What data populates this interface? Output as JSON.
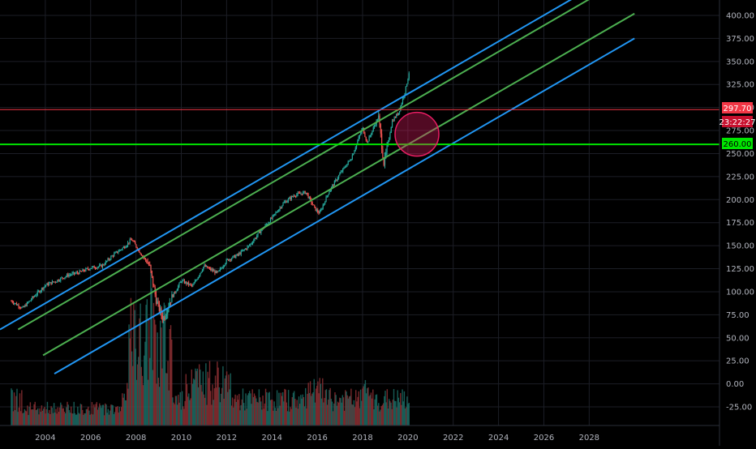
{
  "chart_data": {
    "type": "candlestick",
    "price_axis": {
      "labels": [
        "400.00",
        "375.00",
        "350.00",
        "325.00",
        "300.00",
        "275.00",
        "250.00",
        "225.00",
        "200.00",
        "175.00",
        "150.00",
        "125.00",
        "100.00",
        "75.00",
        "50.00",
        "25.00",
        "0.00",
        "-25.00"
      ],
      "values": [
        400,
        375,
        350,
        325,
        300,
        275,
        250,
        225,
        200,
        175,
        150,
        125,
        100,
        75,
        50,
        25,
        0,
        -25
      ]
    },
    "time_axis": {
      "labels": [
        "2004",
        "2006",
        "2008",
        "2010",
        "2012",
        "2014",
        "2016",
        "2018",
        "2020",
        "2022",
        "2024",
        "2026",
        "2028"
      ],
      "years": [
        2004,
        2006,
        2008,
        2010,
        2012,
        2014,
        2016,
        2018,
        2020,
        2022,
        2024,
        2026,
        2028
      ]
    },
    "price_trend": [
      [
        2002.5,
        90
      ],
      [
        2003.0,
        82
      ],
      [
        2003.5,
        95
      ],
      [
        2004.0,
        107
      ],
      [
        2004.5,
        112
      ],
      [
        2005.0,
        118
      ],
      [
        2005.5,
        121
      ],
      [
        2006.0,
        126
      ],
      [
        2006.5,
        128
      ],
      [
        2007.0,
        140
      ],
      [
        2007.5,
        149
      ],
      [
        2007.8,
        157
      ],
      [
        2008.2,
        142
      ],
      [
        2008.6,
        128
      ],
      [
        2008.9,
        90
      ],
      [
        2009.2,
        70
      ],
      [
        2009.5,
        90
      ],
      [
        2010.0,
        112
      ],
      [
        2010.5,
        106
      ],
      [
        2011.0,
        128
      ],
      [
        2011.6,
        120
      ],
      [
        2012.0,
        134
      ],
      [
        2012.5,
        140
      ],
      [
        2013.0,
        150
      ],
      [
        2013.5,
        166
      ],
      [
        2014.0,
        180
      ],
      [
        2014.5,
        196
      ],
      [
        2015.0,
        205
      ],
      [
        2015.5,
        208
      ],
      [
        2015.9,
        190
      ],
      [
        2016.1,
        185
      ],
      [
        2016.5,
        208
      ],
      [
        2017.0,
        228
      ],
      [
        2017.5,
        245
      ],
      [
        2018.0,
        278
      ],
      [
        2018.2,
        262
      ],
      [
        2018.7,
        290
      ],
      [
        2018.95,
        238
      ],
      [
        2019.3,
        285
      ],
      [
        2019.6,
        295
      ],
      [
        2019.9,
        320
      ],
      [
        2020.05,
        338
      ]
    ],
    "channel_lines": [
      {
        "color": "#2196f3",
        "from": [
          2002.0,
          59
        ],
        "to": [
          2030.0,
          457
        ]
      },
      {
        "color": "#4caf50",
        "from": [
          2002.8,
          59
        ],
        "to": [
          2030.0,
          446
        ]
      },
      {
        "color": "#4caf50",
        "from": [
          2003.9,
          31
        ],
        "to": [
          2030.0,
          402
        ]
      },
      {
        "color": "#2196f3",
        "from": [
          2004.4,
          11
        ],
        "to": [
          2030.0,
          375
        ]
      }
    ],
    "horizontal_lines": [
      {
        "value": 297.7,
        "color": "#f23645"
      },
      {
        "value": 260.0,
        "color": "#00e600"
      }
    ],
    "highlight_circle": {
      "center": [
        2020.4,
        271
      ],
      "color": "#e91e63"
    },
    "volume": {
      "note": "volume histogram bars at bottom of chart"
    },
    "grid": true
  },
  "price_tags": {
    "last_price": "297.70",
    "countdown": "23:22:27",
    "level": "260.00"
  },
  "colors": {
    "up": "#26a69a",
    "down": "#ef5350",
    "background": "#000000",
    "grid": "#1c1e26",
    "axis_text": "#b2b5be",
    "red_tag": "#f23645",
    "green_tag": "#00e600"
  }
}
